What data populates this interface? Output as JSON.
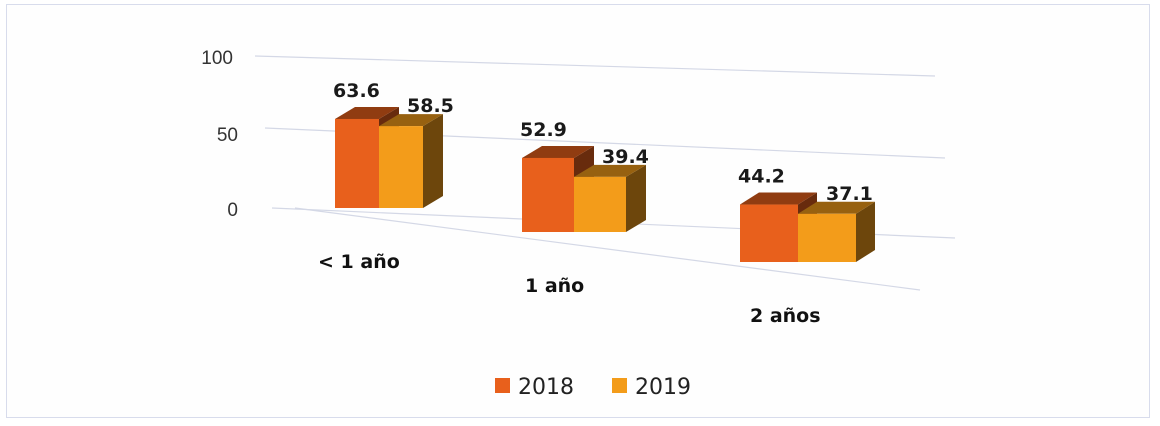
{
  "chart_data": {
    "type": "bar",
    "style": "3d-clustered-columns",
    "categories": [
      "< 1 año",
      "1 año",
      "2 años"
    ],
    "series": [
      {
        "name": "2018",
        "values": [
          63.6,
          52.9,
          44.2
        ],
        "color": "#e8601c"
      },
      {
        "name": "2019",
        "values": [
          58.5,
          39.4,
          37.1
        ],
        "color": "#f39c1a"
      }
    ],
    "y_ticks": [
      "100",
      "50",
      "0"
    ],
    "ylim": [
      0,
      100
    ],
    "title": "",
    "xlabel": "",
    "ylabel": "",
    "legend_position": "bottom",
    "grid": true
  }
}
